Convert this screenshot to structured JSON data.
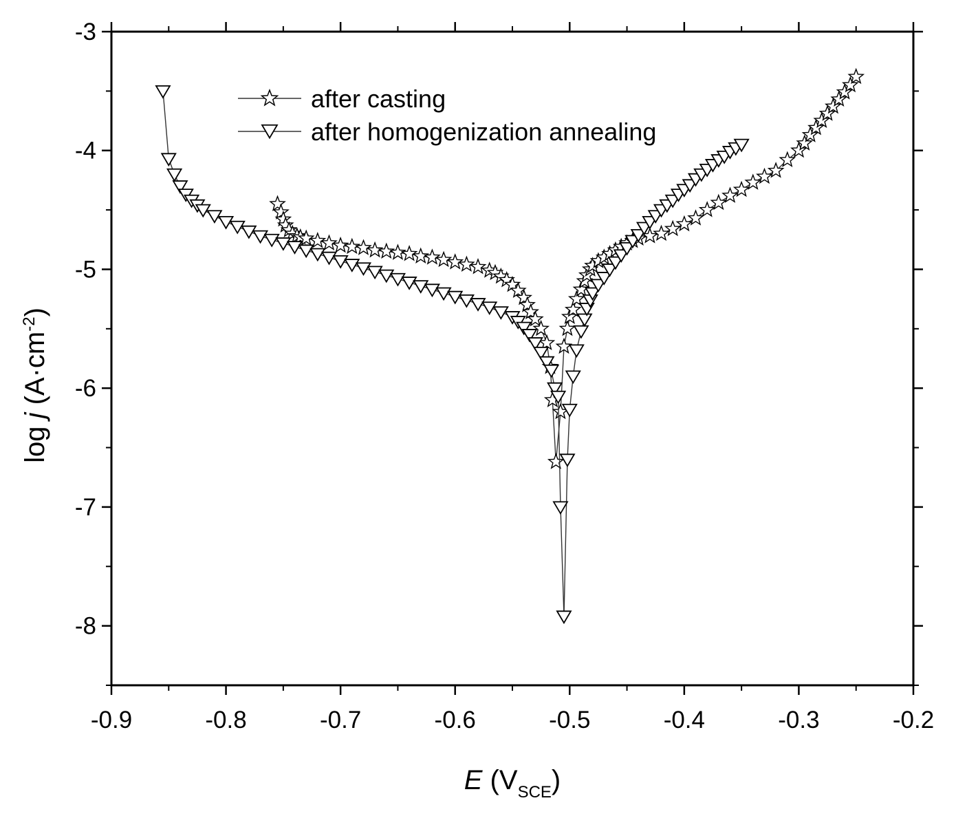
{
  "chart_data": {
    "type": "line",
    "title": "",
    "xlabel": {
      "italic": "E",
      "text": " (V",
      "sub": "SCE",
      "close": ")"
    },
    "ylabel": {
      "prefix": "log ",
      "italic": "j",
      "text": " (A·cm",
      "sup": "-2",
      "close": ")"
    },
    "xlim": [
      -0.9,
      -0.2
    ],
    "ylim": [
      -8.5,
      -3
    ],
    "xticks": [
      -0.9,
      -0.8,
      -0.7,
      -0.6,
      -0.5,
      -0.4,
      -0.3,
      -0.2
    ],
    "xtick_labels": [
      "-0.9",
      "-0.8",
      "-0.7",
      "-0.6",
      "-0.5",
      "-0.4",
      "-0.3",
      "-0.2"
    ],
    "yticks": [
      -3,
      -4,
      -5,
      -6,
      -7,
      -8
    ],
    "ytick_labels": [
      "-3",
      "-4",
      "-5",
      "-6",
      "-7",
      "-8"
    ],
    "x_minor_step": 0.05,
    "y_minor_step": 0.5,
    "grid": false,
    "legend_position": "top-left",
    "series": [
      {
        "name": "after casting",
        "marker": "star",
        "color": "#000000",
        "x": [
          -0.755,
          -0.752,
          -0.75,
          -0.748,
          -0.745,
          -0.742,
          -0.738,
          -0.735,
          -0.73,
          -0.72,
          -0.71,
          -0.7,
          -0.69,
          -0.68,
          -0.67,
          -0.66,
          -0.65,
          -0.64,
          -0.63,
          -0.62,
          -0.61,
          -0.6,
          -0.59,
          -0.58,
          -0.57,
          -0.565,
          -0.56,
          -0.555,
          -0.55,
          -0.545,
          -0.54,
          -0.537,
          -0.534,
          -0.53,
          -0.525,
          -0.52,
          -0.517,
          -0.515,
          -0.512,
          -0.508,
          -0.505,
          -0.502,
          -0.5,
          -0.497,
          -0.494,
          -0.49,
          -0.487,
          -0.485,
          -0.482,
          -0.48,
          -0.475,
          -0.47,
          -0.465,
          -0.46,
          -0.455,
          -0.45,
          -0.445,
          -0.44,
          -0.43,
          -0.42,
          -0.41,
          -0.4,
          -0.39,
          -0.38,
          -0.37,
          -0.36,
          -0.35,
          -0.34,
          -0.33,
          -0.32,
          -0.31,
          -0.3,
          -0.295,
          -0.29,
          -0.285,
          -0.28,
          -0.275,
          -0.27,
          -0.265,
          -0.26,
          -0.255,
          -0.25
        ],
        "y": [
          -4.45,
          -4.52,
          -4.58,
          -4.63,
          -4.67,
          -4.7,
          -4.72,
          -4.73,
          -4.74,
          -4.76,
          -4.78,
          -4.8,
          -4.81,
          -4.82,
          -4.84,
          -4.85,
          -4.86,
          -4.87,
          -4.89,
          -4.9,
          -4.92,
          -4.94,
          -4.96,
          -4.98,
          -5.01,
          -5.03,
          -5.06,
          -5.09,
          -5.13,
          -5.18,
          -5.24,
          -5.3,
          -5.36,
          -5.42,
          -5.5,
          -5.62,
          -5.82,
          -6.1,
          -6.62,
          -6.2,
          -5.65,
          -5.5,
          -5.4,
          -5.34,
          -5.25,
          -5.17,
          -5.1,
          -5.05,
          -5.0,
          -4.97,
          -4.93,
          -4.9,
          -4.87,
          -4.84,
          -4.81,
          -4.78,
          -4.76,
          -4.74,
          -4.72,
          -4.7,
          -4.66,
          -4.62,
          -4.57,
          -4.5,
          -4.44,
          -4.38,
          -4.33,
          -4.27,
          -4.22,
          -4.17,
          -4.08,
          -4.0,
          -3.94,
          -3.87,
          -3.81,
          -3.75,
          -3.69,
          -3.63,
          -3.57,
          -3.51,
          -3.45,
          -3.38
        ]
      },
      {
        "name": "after homogenization annealing",
        "marker": "triangle-down",
        "color": "#000000",
        "x": [
          -0.855,
          -0.85,
          -0.845,
          -0.84,
          -0.835,
          -0.83,
          -0.825,
          -0.82,
          -0.81,
          -0.8,
          -0.79,
          -0.78,
          -0.77,
          -0.76,
          -0.75,
          -0.74,
          -0.73,
          -0.72,
          -0.71,
          -0.7,
          -0.69,
          -0.68,
          -0.67,
          -0.66,
          -0.65,
          -0.64,
          -0.63,
          -0.62,
          -0.61,
          -0.6,
          -0.59,
          -0.58,
          -0.57,
          -0.56,
          -0.55,
          -0.545,
          -0.54,
          -0.535,
          -0.53,
          -0.525,
          -0.52,
          -0.516,
          -0.513,
          -0.51,
          -0.508,
          -0.505,
          -0.502,
          -0.5,
          -0.497,
          -0.494,
          -0.49,
          -0.487,
          -0.485,
          -0.482,
          -0.48,
          -0.475,
          -0.47,
          -0.465,
          -0.46,
          -0.455,
          -0.45,
          -0.445,
          -0.44,
          -0.435,
          -0.43,
          -0.425,
          -0.42,
          -0.415,
          -0.41,
          -0.405,
          -0.4,
          -0.395,
          -0.39,
          -0.385,
          -0.38,
          -0.375,
          -0.37,
          -0.365,
          -0.36,
          -0.355,
          -0.35
        ],
        "y": [
          -3.5,
          -4.07,
          -4.2,
          -4.3,
          -4.37,
          -4.42,
          -4.46,
          -4.5,
          -4.55,
          -4.6,
          -4.64,
          -4.68,
          -4.72,
          -4.75,
          -4.78,
          -4.81,
          -4.84,
          -4.87,
          -4.9,
          -4.93,
          -4.96,
          -4.99,
          -5.02,
          -5.05,
          -5.08,
          -5.11,
          -5.14,
          -5.17,
          -5.2,
          -5.23,
          -5.26,
          -5.29,
          -5.32,
          -5.36,
          -5.4,
          -5.44,
          -5.49,
          -5.55,
          -5.62,
          -5.7,
          -5.78,
          -5.85,
          -6.0,
          -6.07,
          -7.0,
          -7.92,
          -6.6,
          -6.18,
          -5.9,
          -5.68,
          -5.52,
          -5.42,
          -5.33,
          -5.26,
          -5.2,
          -5.13,
          -5.07,
          -5.0,
          -4.94,
          -4.88,
          -4.82,
          -4.76,
          -4.71,
          -4.65,
          -4.6,
          -4.55,
          -4.5,
          -4.46,
          -4.42,
          -4.37,
          -4.33,
          -4.29,
          -4.24,
          -4.2,
          -4.16,
          -4.12,
          -4.08,
          -4.05,
          -4.01,
          -3.98,
          -3.95
        ]
      }
    ]
  }
}
